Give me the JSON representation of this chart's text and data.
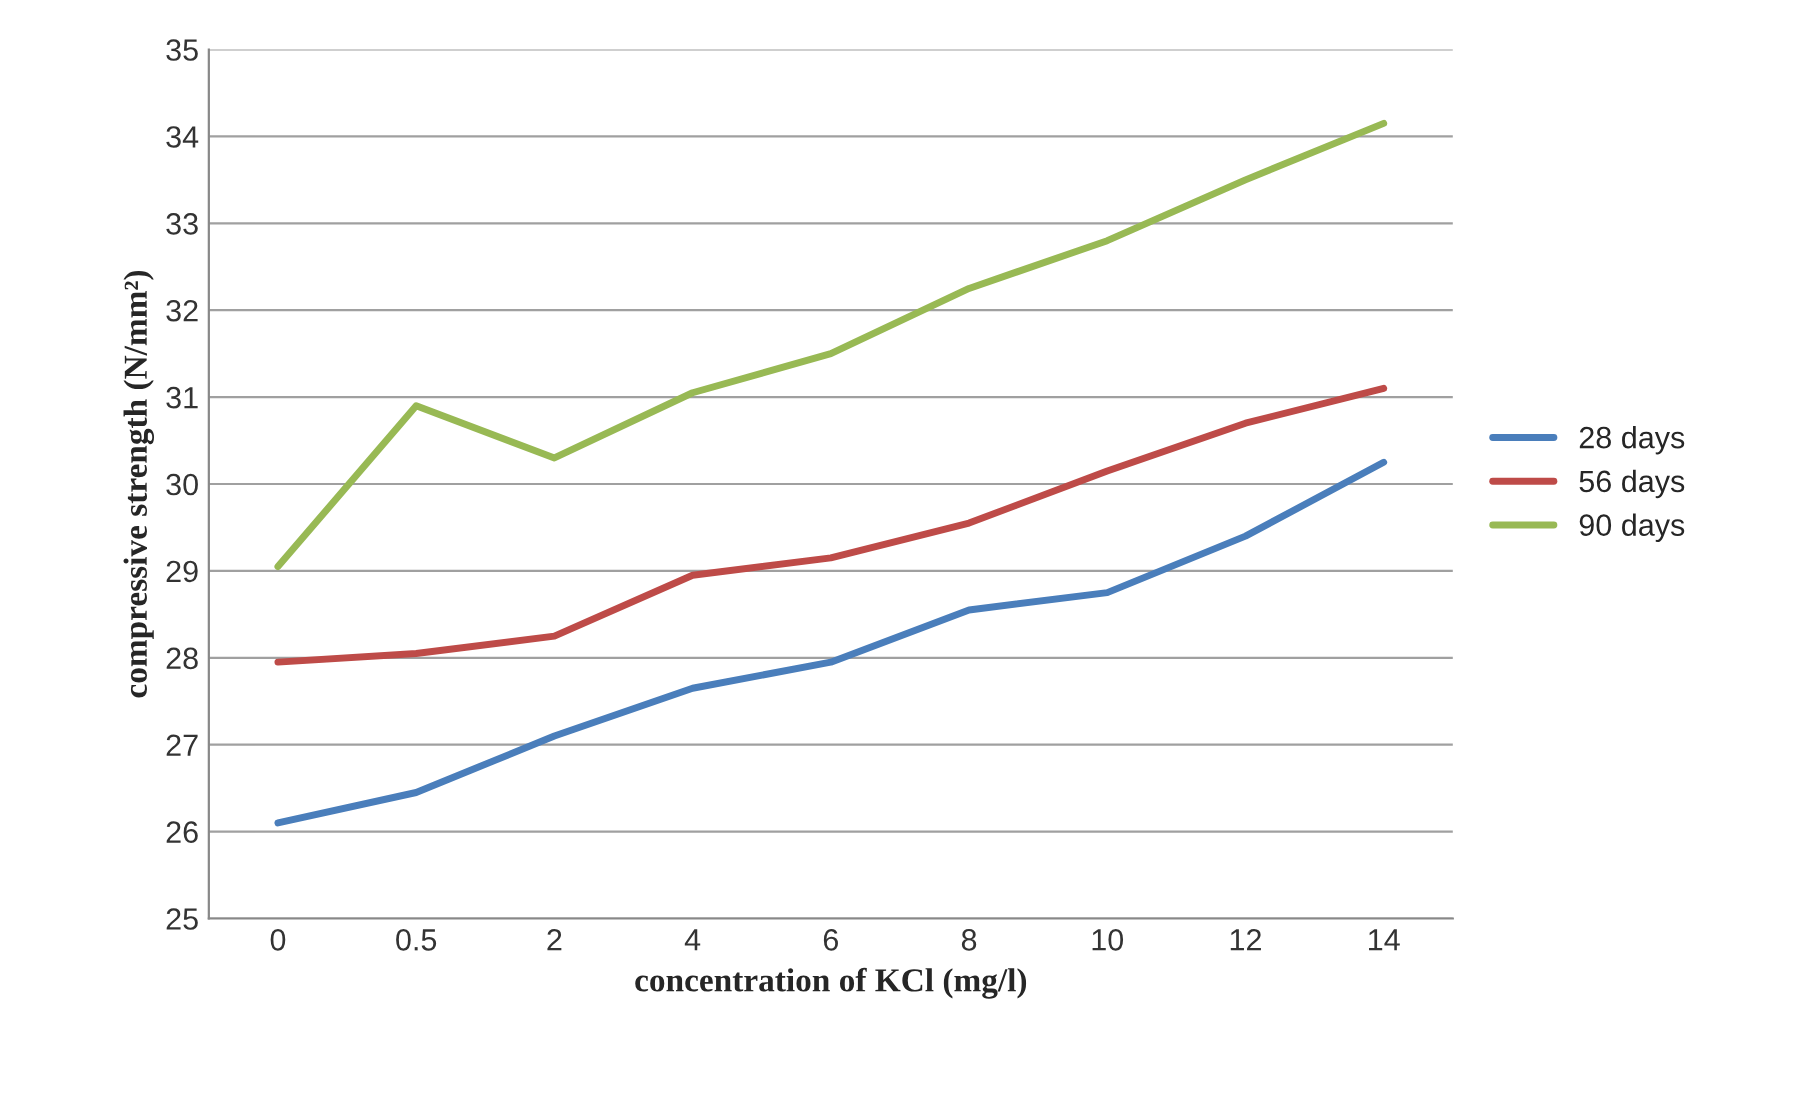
{
  "chart_data": {
    "type": "line",
    "xlabel": "concentration of KCl (mg/l)",
    "ylabel": "compressive strength (N/mm²)",
    "categories": [
      "0",
      "0.5",
      "2",
      "4",
      "6",
      "8",
      "10",
      "12",
      "14"
    ],
    "series": [
      {
        "name": "28 days",
        "color": "#4a7ebb",
        "values": [
          26.1,
          26.45,
          27.1,
          27.65,
          27.95,
          28.55,
          28.75,
          29.4,
          30.25
        ]
      },
      {
        "name": "56 days",
        "color": "#be4b48",
        "values": [
          27.95,
          28.05,
          28.25,
          28.95,
          29.15,
          29.55,
          30.15,
          30.7,
          31.1
        ]
      },
      {
        "name": "90 days",
        "color": "#98b954",
        "values": [
          29.05,
          30.9,
          30.3,
          31.05,
          31.5,
          32.25,
          32.8,
          33.5,
          34.15
        ]
      }
    ],
    "ylim": [
      25,
      35
    ],
    "yticks": [
      25,
      26,
      27,
      28,
      29,
      30,
      31,
      32,
      33,
      34,
      35
    ],
    "grid": "y",
    "legend": "right",
    "marker": "none",
    "line_style": "solid"
  }
}
